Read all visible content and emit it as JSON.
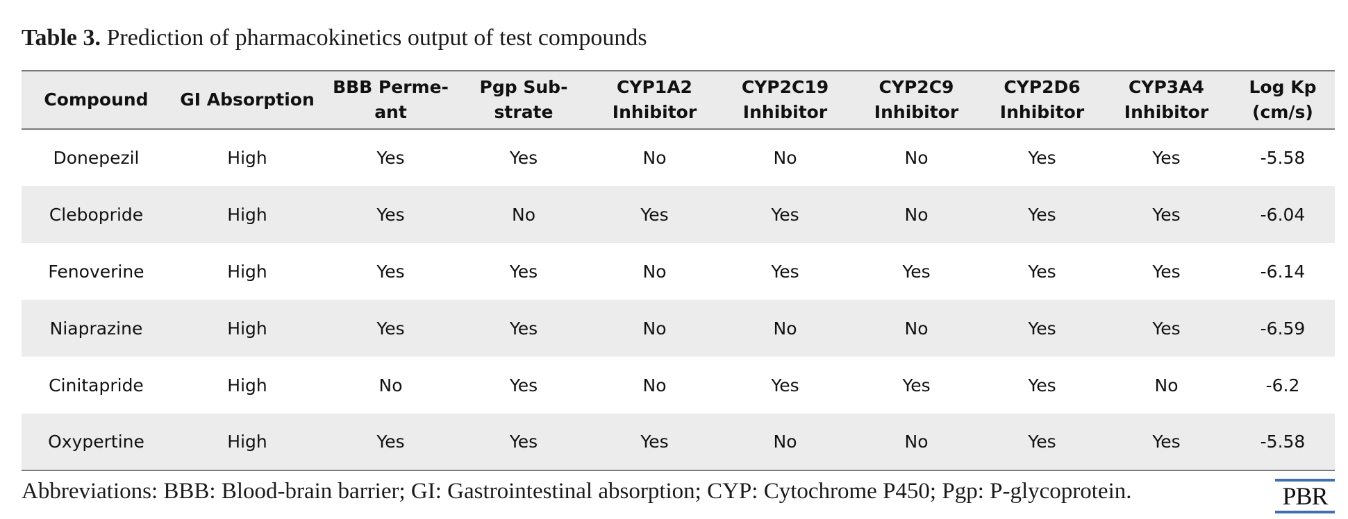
{
  "caption": {
    "lead": "Table 3.",
    "text": "Prediction of pharmacokinetics output of test compounds"
  },
  "table": {
    "headers": [
      [
        "Compound"
      ],
      [
        "GI Absorption"
      ],
      [
        "BBB Perme-",
        "ant"
      ],
      [
        "Pgp Sub-",
        "strate"
      ],
      [
        "CYP1A2",
        "Inhibitor"
      ],
      [
        "CYP2C19",
        "Inhibitor"
      ],
      [
        "CYP2C9",
        "Inhibitor"
      ],
      [
        "CYP2D6",
        "Inhibitor"
      ],
      [
        "CYP3A4",
        "Inhibitor"
      ],
      [
        "Log Kp",
        "(cm/s)"
      ]
    ],
    "rows": [
      [
        "Donepezil",
        "High",
        "Yes",
        "Yes",
        "No",
        "No",
        "No",
        "Yes",
        "Yes",
        "-5.58"
      ],
      [
        "Clebopride",
        "High",
        "Yes",
        "No",
        "Yes",
        "Yes",
        "No",
        "Yes",
        "Yes",
        "-6.04"
      ],
      [
        "Fenoverine",
        "High",
        "Yes",
        "Yes",
        "No",
        "Yes",
        "Yes",
        "Yes",
        "Yes",
        "-6.14"
      ],
      [
        "Niaprazine",
        "High",
        "Yes",
        "Yes",
        "No",
        "No",
        "No",
        "Yes",
        "Yes",
        "-6.59"
      ],
      [
        "Cinitapride",
        "High",
        "No",
        "Yes",
        "No",
        "Yes",
        "Yes",
        "Yes",
        "No",
        "-6.2"
      ],
      [
        "Oxypertine",
        "High",
        "Yes",
        "Yes",
        "Yes",
        "No",
        "No",
        "Yes",
        "Yes",
        "-5.58"
      ]
    ]
  },
  "footnote": "Abbreviations: BBB: Blood-brain barrier; GI: Gastrointestinal absorption; CYP: Cytochrome P450; Pgp: P-glycoprotein.",
  "logo": {
    "text": "PBR",
    "color": "#3f6fb1"
  },
  "colors": {
    "band": "#ebebeb",
    "rule": "#7a7a7a"
  }
}
